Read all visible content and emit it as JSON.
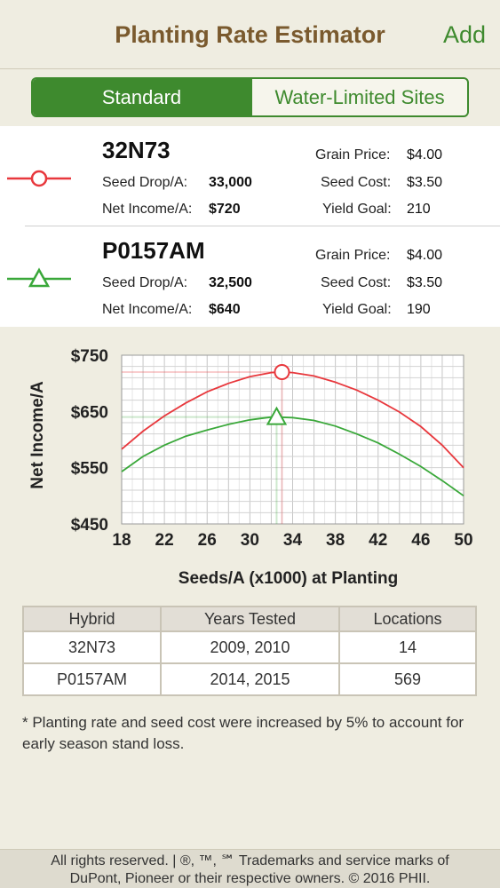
{
  "header": {
    "title": "Planting Rate Estimator",
    "add_label": "Add"
  },
  "segment": {
    "options": [
      "Standard",
      "Water-Limited Sites"
    ],
    "selected": "Standard"
  },
  "hybrids": [
    {
      "name": "32N73",
      "color": "#e8383d",
      "marker": "circle",
      "seed_drop_label": "Seed Drop/A:",
      "seed_drop": "33,000",
      "net_income_label": "Net Income/A:",
      "net_income": "$720",
      "grain_price_label": "Grain Price:",
      "grain_price": "$4.00",
      "seed_cost_label": "Seed Cost:",
      "seed_cost": "$3.50",
      "yield_goal_label": "Yield Goal:",
      "yield_goal": "210"
    },
    {
      "name": "P0157AM",
      "color": "#3aa83a",
      "marker": "triangle",
      "seed_drop_label": "Seed Drop/A:",
      "seed_drop": "32,500",
      "net_income_label": "Net Income/A:",
      "net_income": "$640",
      "grain_price_label": "Grain Price:",
      "grain_price": "$4.00",
      "seed_cost_label": "Seed Cost:",
      "seed_cost": "$3.50",
      "yield_goal_label": "Yield Goal:",
      "yield_goal": "190"
    }
  ],
  "chart_data": {
    "type": "line",
    "xlabel": "Seeds/A (x1000) at Planting",
    "ylabel": "Net Income/A",
    "xlim": [
      18,
      50
    ],
    "ylim": [
      450,
      750
    ],
    "xticks": [
      18,
      22,
      26,
      30,
      34,
      38,
      42,
      46,
      50
    ],
    "yticks": [
      450,
      550,
      650,
      750
    ],
    "ytick_labels": [
      "$450",
      "$550",
      "$650",
      "$750"
    ],
    "grid": true,
    "series": [
      {
        "name": "32N73",
        "color": "#e8383d",
        "marker": "circle",
        "marker_at": [
          33,
          720
        ],
        "x": [
          18,
          20,
          22,
          24,
          26,
          28,
          30,
          32,
          33,
          34,
          36,
          38,
          40,
          42,
          44,
          46,
          48,
          50
        ],
        "y": [
          583,
          615,
          642,
          665,
          685,
          700,
          712,
          719,
          720,
          719,
          713,
          702,
          688,
          670,
          649,
          623,
          590,
          550
        ]
      },
      {
        "name": "P0157AM",
        "color": "#3aa83a",
        "marker": "triangle",
        "marker_at": [
          32.5,
          640
        ],
        "x": [
          18,
          20,
          22,
          24,
          26,
          28,
          30,
          32,
          32.5,
          34,
          36,
          38,
          40,
          42,
          44,
          46,
          48,
          50
        ],
        "y": [
          543,
          570,
          590,
          606,
          617,
          627,
          635,
          640,
          640,
          639,
          634,
          624,
          610,
          594,
          574,
          552,
          527,
          500
        ]
      }
    ]
  },
  "table": {
    "headers": [
      "Hybrid",
      "Years Tested",
      "Locations"
    ],
    "rows": [
      [
        "32N73",
        "2009, 2010",
        "14"
      ],
      [
        "P0157AM",
        "2014, 2015",
        "569"
      ]
    ]
  },
  "note": "* Planting rate and seed cost were increased by 5% to account for early season stand loss.",
  "footer": {
    "line1": "All rights reserved. | ®, ™, ℠ Trademarks and service marks of",
    "line2": "DuPont, Pioneer or their respective owners. © 2016 PHII."
  }
}
